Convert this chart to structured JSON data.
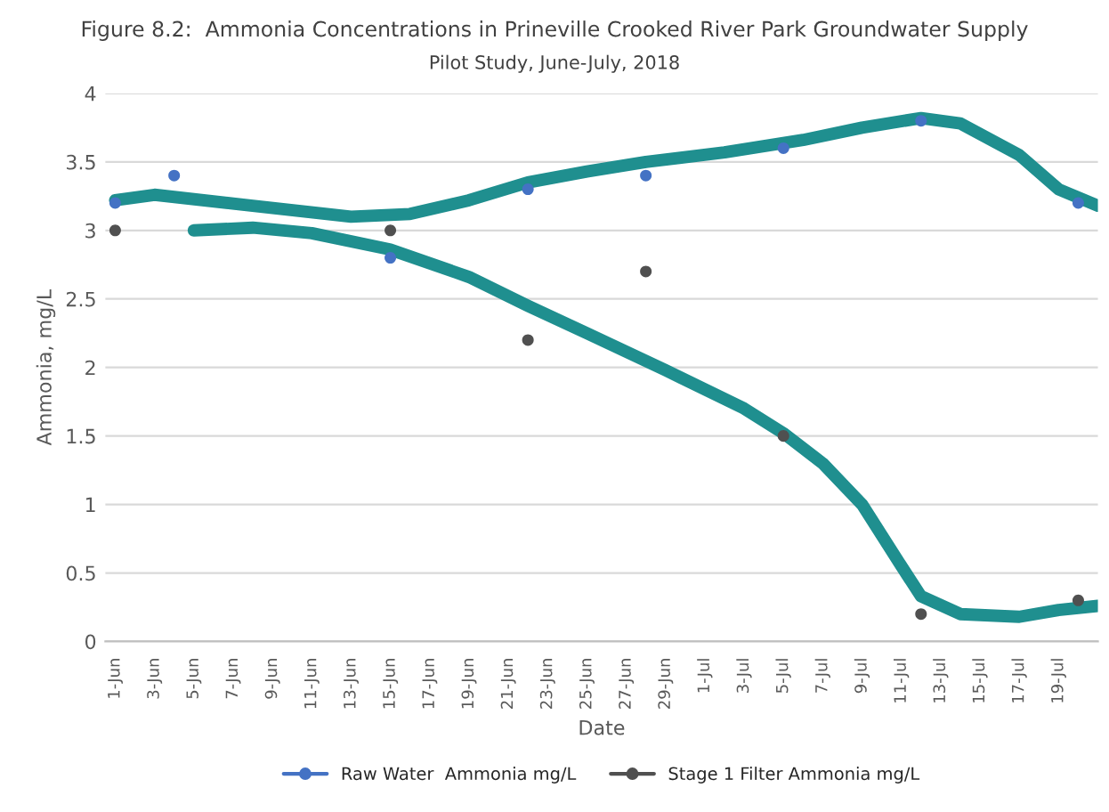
{
  "chart_data": {
    "type": "scatter",
    "title": "Figure 8.2:  Ammonia Concentrations in Prineville Crooked River Park Groundwater Supply",
    "subtitle": "Pilot Study, June-July, 2018",
    "xlabel": "Date",
    "ylabel": "Ammonia, mg/L",
    "xlim": [
      "2018-05-31T12:00",
      "2018-07-21"
    ],
    "ylim": [
      0,
      4
    ],
    "yticks": [
      0,
      0.5,
      1,
      1.5,
      2,
      2.5,
      3,
      3.5,
      4
    ],
    "xticks": [
      {
        "value": "2018-06-01",
        "label": "1-Jun"
      },
      {
        "value": "2018-06-03",
        "label": "3-Jun"
      },
      {
        "value": "2018-06-05",
        "label": "5-Jun"
      },
      {
        "value": "2018-06-07",
        "label": "7-Jun"
      },
      {
        "value": "2018-06-09",
        "label": "9-Jun"
      },
      {
        "value": "2018-06-11",
        "label": "11-Jun"
      },
      {
        "value": "2018-06-13",
        "label": "13-Jun"
      },
      {
        "value": "2018-06-15",
        "label": "15-Jun"
      },
      {
        "value": "2018-06-17",
        "label": "17-Jun"
      },
      {
        "value": "2018-06-19",
        "label": "19-Jun"
      },
      {
        "value": "2018-06-21",
        "label": "21-Jun"
      },
      {
        "value": "2018-06-23",
        "label": "23-Jun"
      },
      {
        "value": "2018-06-25",
        "label": "25-Jun"
      },
      {
        "value": "2018-06-27",
        "label": "27-Jun"
      },
      {
        "value": "2018-06-29",
        "label": "29-Jun"
      },
      {
        "value": "2018-07-01",
        "label": "1-Jul"
      },
      {
        "value": "2018-07-03",
        "label": "3-Jul"
      },
      {
        "value": "2018-07-05",
        "label": "5-Jul"
      },
      {
        "value": "2018-07-07",
        "label": "7-Jul"
      },
      {
        "value": "2018-07-09",
        "label": "9-Jul"
      },
      {
        "value": "2018-07-11",
        "label": "11-Jul"
      },
      {
        "value": "2018-07-13",
        "label": "13-Jul"
      },
      {
        "value": "2018-07-15",
        "label": "15-Jul"
      },
      {
        "value": "2018-07-17",
        "label": "17-Jul"
      },
      {
        "value": "2018-07-19",
        "label": "19-Jul"
      }
    ],
    "grid": "y",
    "legend": "bottom",
    "series": [
      {
        "type": "line",
        "color": "#1f8f8f",
        "x": [
          "2018-06-01",
          "2018-06-03",
          "2018-06-08",
          "2018-06-13",
          "2018-06-16",
          "2018-06-19",
          "2018-06-22",
          "2018-06-25",
          "2018-06-28",
          "2018-07-02",
          "2018-07-06",
          "2018-07-09",
          "2018-07-12",
          "2018-07-14",
          "2018-07-17",
          "2018-07-19",
          "2018-07-21"
        ],
        "values": [
          3.22,
          3.26,
          3.18,
          3.1,
          3.12,
          3.22,
          3.35,
          3.43,
          3.5,
          3.57,
          3.66,
          3.75,
          3.82,
          3.78,
          3.55,
          3.3,
          3.18
        ]
      },
      {
        "type": "line",
        "color": "#1f8f8f",
        "x": [
          "2018-06-05",
          "2018-06-08",
          "2018-06-11",
          "2018-06-15",
          "2018-06-19",
          "2018-06-22",
          "2018-06-25",
          "2018-06-29",
          "2018-07-03",
          "2018-07-05",
          "2018-07-07",
          "2018-07-09",
          "2018-07-11",
          "2018-07-12",
          "2018-07-14",
          "2018-07-17",
          "2018-07-19",
          "2018-07-21"
        ],
        "values": [
          3.0,
          3.02,
          2.98,
          2.86,
          2.66,
          2.45,
          2.25,
          1.98,
          1.7,
          1.52,
          1.3,
          1.0,
          0.55,
          0.33,
          0.2,
          0.18,
          0.23,
          0.26
        ]
      },
      {
        "name": "Raw Water  Ammonia mg/L",
        "color": "#4472c4",
        "marker": "circle",
        "x": [
          "2018-06-01",
          "2018-06-04",
          "2018-06-15",
          "2018-06-22",
          "2018-06-28",
          "2018-07-05",
          "2018-07-12",
          "2018-07-20"
        ],
        "values": [
          3.2,
          3.4,
          2.8,
          3.3,
          3.4,
          3.6,
          3.8,
          3.2
        ]
      },
      {
        "name": "Stage 1 Filter Ammonia mg/L",
        "color": "#505050",
        "marker": "circle",
        "x": [
          "2018-06-01",
          "2018-06-15",
          "2018-06-22",
          "2018-06-28",
          "2018-07-05",
          "2018-07-12",
          "2018-07-20"
        ],
        "values": [
          3.0,
          3.0,
          2.2,
          2.7,
          1.5,
          0.2,
          0.3
        ]
      }
    ]
  }
}
